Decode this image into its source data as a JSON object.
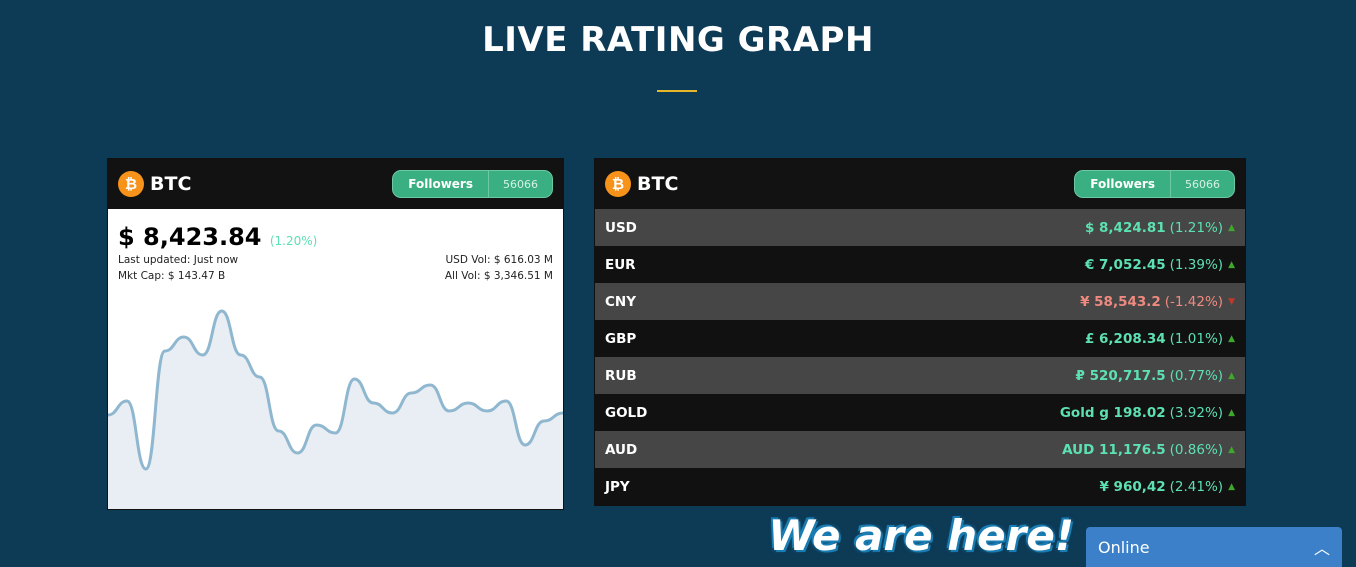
{
  "page": {
    "title": "LIVE RATING GRAPH"
  },
  "widget1": {
    "symbol": "BTC",
    "followers_label": "Followers",
    "followers_count": "56066",
    "price": "$ 8,423.84",
    "change": "(1.20%)",
    "last_updated": "Last updated: Just now",
    "mkt_cap": "Mkt Cap: $ 143.47 B",
    "usd_vol": "USD Vol: $ 616.03 M",
    "all_vol": "All Vol: $ 3,346.51 M",
    "sparkline": [
      43,
      50,
      16,
      75,
      82,
      73,
      95,
      73,
      62,
      35,
      24,
      38,
      34,
      61,
      49,
      44,
      54,
      58,
      45,
      49,
      45,
      50,
      28,
      40,
      44
    ],
    "line_color": "#8fb7cf",
    "fill_color": "#e8eef3"
  },
  "widget2": {
    "symbol": "BTC",
    "followers_label": "Followers",
    "followers_count": "56066",
    "rows": [
      {
        "name": "USD",
        "value": "$ 8,424.81",
        "pct": "(1.21%)",
        "dir": "up"
      },
      {
        "name": "EUR",
        "value": "€ 7,052.45",
        "pct": "(1.39%)",
        "dir": "up"
      },
      {
        "name": "CNY",
        "value": "¥ 58,543.2",
        "pct": "(-1.42%)",
        "dir": "down"
      },
      {
        "name": "GBP",
        "value": "£ 6,208.34",
        "pct": "(1.01%)",
        "dir": "up"
      },
      {
        "name": "RUB",
        "value": "₽ 520,717.5",
        "pct": "(0.77%)",
        "dir": "up"
      },
      {
        "name": "GOLD",
        "value": "Gold g 198.02",
        "pct": "(3.92%)",
        "dir": "up"
      },
      {
        "name": "AUD",
        "value": "AUD 11,176.5",
        "pct": "(0.86%)",
        "dir": "up"
      },
      {
        "name": "JPY",
        "value": "¥ 960,42",
        "pct": "(2.41%)",
        "dir": "up"
      }
    ]
  },
  "chat": {
    "badge": "We are here!",
    "status": "Online"
  }
}
